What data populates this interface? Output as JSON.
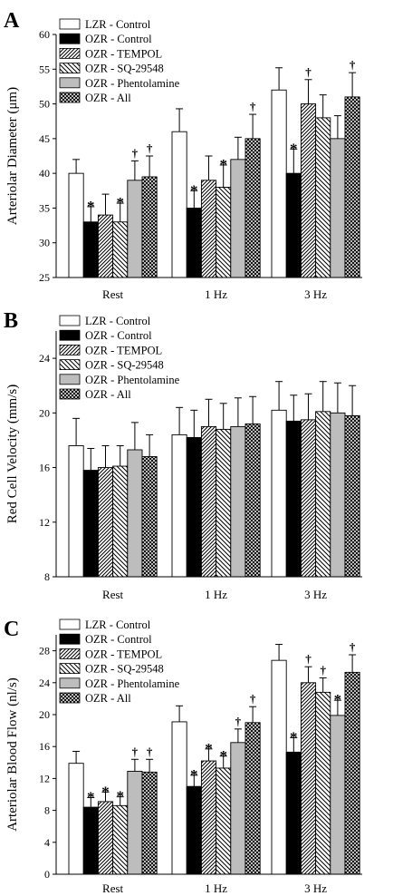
{
  "figure": {
    "series_names": [
      "LZR - Control",
      "OZR - Control",
      "OZR - TEMPOL",
      "OZR - SQ-29548",
      "OZR - Phentolamine",
      "OZR - All"
    ],
    "colors": {
      "lzr_control": "#ffffff",
      "ozr_control": "#000000",
      "phentolamine": "#bdbdbd",
      "axis": "#000000"
    },
    "patterns": [
      "white",
      "black",
      "diagonal-up",
      "diagonal-down",
      "gray",
      "crosshatch"
    ]
  },
  "chart_data": [
    {
      "type": "bar",
      "panel_label": "A",
      "categories": [
        "Rest",
        "1 Hz",
        "3 Hz"
      ],
      "ylabel": "Arteriolar Diameter (μm)",
      "ylim": [
        25,
        60
      ],
      "yticks": [
        25,
        30,
        35,
        40,
        45,
        50,
        55,
        60
      ],
      "legend_position": "top-left",
      "series": [
        {
          "name": "LZR - Control",
          "values": [
            40,
            46,
            52
          ],
          "errors": [
            2,
            3.3,
            3.2
          ],
          "marks": [
            "",
            "",
            ""
          ]
        },
        {
          "name": "OZR - Control",
          "values": [
            33,
            35,
            40
          ],
          "errors": [
            2.2,
            2.5,
            3.5
          ],
          "marks": [
            "*",
            "*",
            "*"
          ]
        },
        {
          "name": "OZR - TEMPOL",
          "values": [
            34,
            39,
            50
          ],
          "errors": [
            3,
            3.5,
            3.5
          ],
          "marks": [
            "",
            "",
            "†"
          ]
        },
        {
          "name": "OZR - SQ-29548",
          "values": [
            33,
            38,
            48
          ],
          "errors": [
            2.7,
            3.2,
            3.3
          ],
          "marks": [
            "*",
            "*",
            ""
          ]
        },
        {
          "name": "OZR - Phentolamine",
          "values": [
            39,
            42,
            45
          ],
          "errors": [
            2.8,
            3.2,
            3.3
          ],
          "marks": [
            "†",
            "",
            ""
          ]
        },
        {
          "name": "OZR - All",
          "values": [
            39.5,
            45,
            51
          ],
          "errors": [
            3,
            3.5,
            3.5
          ],
          "marks": [
            "†",
            "†",
            "†"
          ]
        }
      ]
    },
    {
      "type": "bar",
      "panel_label": "B",
      "categories": [
        "Rest",
        "1 Hz",
        "3 Hz"
      ],
      "ylabel": "Red Cell Velocity (mm/s)",
      "ylim": [
        8,
        26
      ],
      "yticks": [
        8,
        12,
        16,
        20,
        24
      ],
      "legend_position": "top-left",
      "series": [
        {
          "name": "LZR - Control",
          "values": [
            17.6,
            18.4,
            20.2
          ],
          "errors": [
            2,
            2,
            2.1
          ],
          "marks": [
            "",
            "",
            ""
          ]
        },
        {
          "name": "OZR - Control",
          "values": [
            15.8,
            18.2,
            19.4
          ],
          "errors": [
            1.6,
            2,
            1.9
          ],
          "marks": [
            "",
            "",
            ""
          ]
        },
        {
          "name": "OZR - TEMPOL",
          "values": [
            16,
            19,
            19.5
          ],
          "errors": [
            1.6,
            2,
            1.9
          ],
          "marks": [
            "",
            "",
            ""
          ]
        },
        {
          "name": "OZR - SQ-29548",
          "values": [
            16.1,
            18.8,
            20.1
          ],
          "errors": [
            1.5,
            1.9,
            2.2
          ],
          "marks": [
            "",
            "",
            ""
          ]
        },
        {
          "name": "OZR - Phentolamine",
          "values": [
            17.3,
            19,
            20
          ],
          "errors": [
            2,
            2.1,
            2.2
          ],
          "marks": [
            "",
            "",
            ""
          ]
        },
        {
          "name": "OZR - All",
          "values": [
            16.8,
            19.2,
            19.8
          ],
          "errors": [
            1.6,
            2,
            2.2
          ],
          "marks": [
            "",
            "",
            ""
          ]
        }
      ]
    },
    {
      "type": "bar",
      "panel_label": "C",
      "categories": [
        "Rest",
        "1 Hz",
        "3 Hz"
      ],
      "ylabel": "Arteriolar Blood Flow (nl/s)",
      "ylim": [
        0,
        30
      ],
      "yticks": [
        0,
        4,
        8,
        12,
        16,
        20,
        24,
        28
      ],
      "legend_position": "top-left",
      "series": [
        {
          "name": "LZR - Control",
          "values": [
            13.9,
            19.1,
            26.8
          ],
          "errors": [
            1.5,
            2,
            2
          ],
          "marks": [
            "",
            "",
            ""
          ]
        },
        {
          "name": "OZR - Control",
          "values": [
            8.4,
            11,
            15.3
          ],
          "errors": [
            1.2,
            1.4,
            1.8
          ],
          "marks": [
            "*",
            "*",
            "*"
          ]
        },
        {
          "name": "OZR - TEMPOL",
          "values": [
            9.1,
            14.2,
            24
          ],
          "errors": [
            1.2,
            1.5,
            2
          ],
          "marks": [
            "*",
            "*",
            "†"
          ]
        },
        {
          "name": "OZR - SQ-29548",
          "values": [
            8.6,
            13.3,
            22.8
          ],
          "errors": [
            1.1,
            1.5,
            1.8
          ],
          "marks": [
            "*",
            "*",
            "†"
          ]
        },
        {
          "name": "OZR - Phentolamine",
          "values": [
            12.9,
            16.5,
            19.9
          ],
          "errors": [
            1.5,
            1.7,
            1.9
          ],
          "marks": [
            "†",
            "†",
            "*"
          ]
        },
        {
          "name": "OZR - All",
          "values": [
            12.8,
            19,
            25.3
          ],
          "errors": [
            1.6,
            2,
            2.2
          ],
          "marks": [
            "†",
            "†",
            "†"
          ]
        }
      ]
    }
  ]
}
